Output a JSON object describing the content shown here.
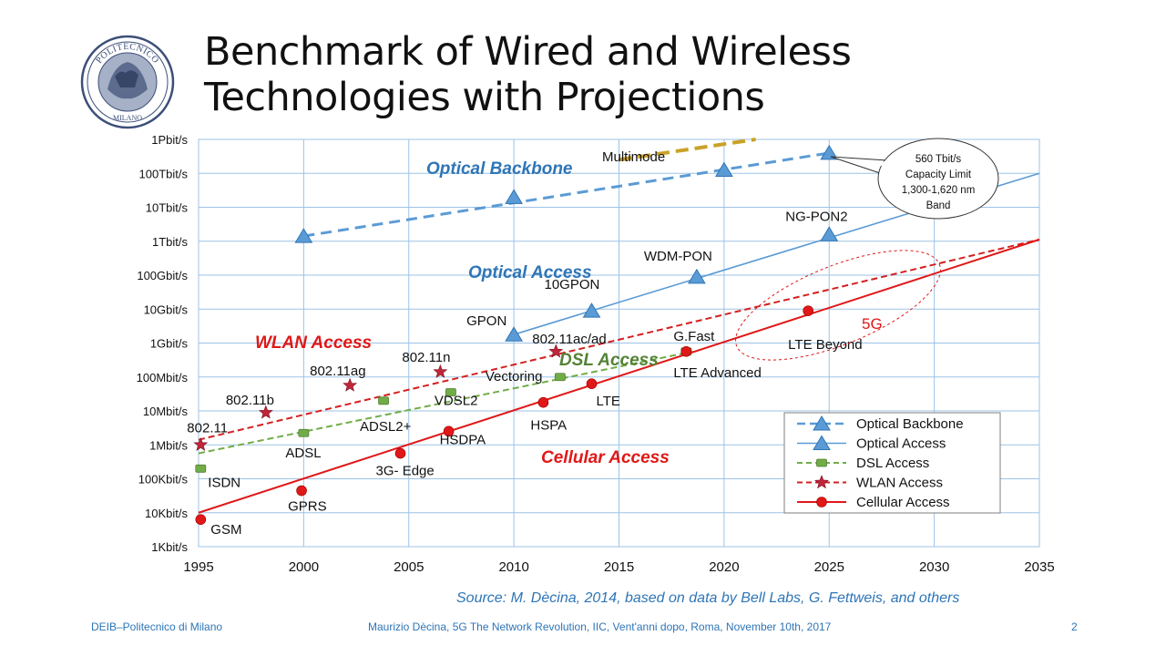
{
  "slide": {
    "title_line1": "Benchmark of Wired and Wireless",
    "title_line2": "Technologies with Projections",
    "logo_text_top": "POLITECNICO",
    "logo_text_bottom": "MILANO",
    "source": "Source: M. Dècina, 2014, based on data by Bell Labs, G. Fettweis, and others",
    "footer_left": "DEIB–Politecnico di Milano",
    "footer_center": "Maurizio Dècina, 5G The Network Revolution, IIC, Vent'anni dopo,  Roma, November 10th, 2017",
    "page_number": "2"
  },
  "colors": {
    "optical_backbone": "#5b9bd5",
    "optical_access": "#5b9bd5",
    "dsl": "#70ad47",
    "wlan": "#d42020",
    "cellular": "#e01818",
    "multimode": "#c9a227",
    "grid": "#9dc3e6",
    "category_blue": "#2e75b6",
    "category_red": "#e01818",
    "category_green": "#548235"
  },
  "chart_data": {
    "type": "line",
    "y_scale": "log10",
    "y_unit_bits_per_s": true,
    "xlim": [
      1995,
      2035
    ],
    "ylim_log10": [
      3,
      15
    ],
    "x_ticks": [
      1995,
      2000,
      2005,
      2010,
      2015,
      2020,
      2025,
      2030,
      2035
    ],
    "y_ticks": [
      {
        "label": "1Kbit/s",
        "log10": 3
      },
      {
        "label": "10Kbit/s",
        "log10": 4
      },
      {
        "label": "100Kbit/s",
        "log10": 5
      },
      {
        "label": "1Mbit/s",
        "log10": 6
      },
      {
        "label": "10Mbit/s",
        "log10": 7
      },
      {
        "label": "100Mbit/s",
        "log10": 8
      },
      {
        "label": "1Gbit/s",
        "log10": 9
      },
      {
        "label": "10Gbit/s",
        "log10": 10
      },
      {
        "label": "100Gbit/s",
        "log10": 11
      },
      {
        "label": "1Tbit/s",
        "log10": 12
      },
      {
        "label": "10Tbit/s",
        "log10": 13
      },
      {
        "label": "100Tbit/s",
        "log10": 14
      },
      {
        "label": "1Pbit/s",
        "log10": 15
      }
    ],
    "series": [
      {
        "key": "optical_backbone",
        "name": "Optical Backbone",
        "marker": "triangle",
        "line_style": "dashed",
        "trend": [
          [
            2000,
            12.15
          ],
          [
            2025,
            14.6
          ]
        ],
        "points": [
          {
            "x": 2000,
            "y": 12.15
          },
          {
            "x": 2010,
            "y": 13.3
          },
          {
            "x": 2020,
            "y": 14.1
          },
          {
            "x": 2025,
            "y": 14.6
          }
        ]
      },
      {
        "key": "optical_access",
        "name": "Optical Access",
        "marker": "triangle",
        "line_style": "solid",
        "trend": [
          [
            2010,
            9.25
          ],
          [
            2035,
            14.0
          ]
        ],
        "points": [
          {
            "x": 2010,
            "y": 9.25,
            "label": "GPON"
          },
          {
            "x": 2013.7,
            "y": 9.95,
            "label": "10GPON"
          },
          {
            "x": 2018.7,
            "y": 10.95,
            "label": "WDM-PON"
          },
          {
            "x": 2025,
            "y": 12.2,
            "label": "NG-PON2"
          }
        ]
      },
      {
        "key": "dsl",
        "name": "DSL Access",
        "marker": "square",
        "line_style": "dashed",
        "trend": [
          [
            1995,
            5.75
          ],
          [
            2018.5,
            8.75
          ]
        ],
        "points": [
          {
            "x": 1995.1,
            "y": 5.3,
            "label": "ISDN"
          },
          {
            "x": 2000,
            "y": 6.35,
            "label": "ADSL"
          },
          {
            "x": 2003.8,
            "y": 7.3,
            "label": "ADSL2+"
          },
          {
            "x": 2007,
            "y": 7.55,
            "label": "VDSL2"
          },
          {
            "x": 2012.2,
            "y": 8.0,
            "label": "Vectoring"
          },
          {
            "x": 2018.2,
            "y": 8.75,
            "label": "G.Fast"
          }
        ]
      },
      {
        "key": "wlan",
        "name": "WLAN Access",
        "marker": "star",
        "line_style": "dashed",
        "trend": [
          [
            1995,
            6.15
          ],
          [
            2035,
            12.05
          ]
        ],
        "points": [
          {
            "x": 1995.1,
            "y": 6.0,
            "label": "802.11"
          },
          {
            "x": 1998.2,
            "y": 6.95,
            "label": "802.11b"
          },
          {
            "x": 2002.2,
            "y": 7.75,
            "label": "802.11ag"
          },
          {
            "x": 2006.5,
            "y": 8.15,
            "label": "802.11n"
          },
          {
            "x": 2012,
            "y": 8.75,
            "label": "802.11ac/ad"
          }
        ]
      },
      {
        "key": "cellular",
        "name": "Cellular Access",
        "marker": "circle",
        "line_style": "solid",
        "trend": [
          [
            1995,
            4.0
          ],
          [
            2035,
            12.05
          ]
        ],
        "points": [
          {
            "x": 1995.1,
            "y": 3.8,
            "label": "GSM"
          },
          {
            "x": 1999.9,
            "y": 4.65,
            "label": "GPRS"
          },
          {
            "x": 2004.6,
            "y": 5.75,
            "label": "3G- Edge"
          },
          {
            "x": 2006.9,
            "y": 6.4,
            "label": "HSDPA"
          },
          {
            "x": 2011.4,
            "y": 7.25,
            "label": "HSPA"
          },
          {
            "x": 2013.7,
            "y": 7.8,
            "label": "LTE"
          },
          {
            "x": 2018.2,
            "y": 8.75,
            "label": "LTE Advanced"
          },
          {
            "x": 2024,
            "y": 9.95,
            "label": "LTE Beyond"
          }
        ]
      },
      {
        "key": "multimode",
        "name": "Multimode",
        "line_style": "dashed-thick",
        "trend": [
          [
            2015,
            14.4
          ],
          [
            2021.5,
            15.0
          ]
        ]
      }
    ],
    "category_labels": [
      {
        "text": "Optical Backbone",
        "color_key": "category_blue"
      },
      {
        "text": "Optical Access",
        "color_key": "category_blue"
      },
      {
        "text": "WLAN Access",
        "color_key": "category_red"
      },
      {
        "text": "DSL Access",
        "color_key": "category_green"
      },
      {
        "text": "Cellular Access",
        "color_key": "category_red"
      }
    ],
    "annotations": [
      {
        "text": "Multimode"
      },
      {
        "text": "5G"
      },
      {
        "lines": [
          "560 Tbit/s",
          "Capacity Limit",
          "1,300-1,620  nm",
          "Band"
        ]
      }
    ],
    "legend": {
      "position": "bottom-right",
      "entries": [
        "Optical Backbone",
        "Optical Access",
        "DSL Access",
        "WLAN Access",
        "Cellular Access"
      ]
    },
    "grid": true
  }
}
